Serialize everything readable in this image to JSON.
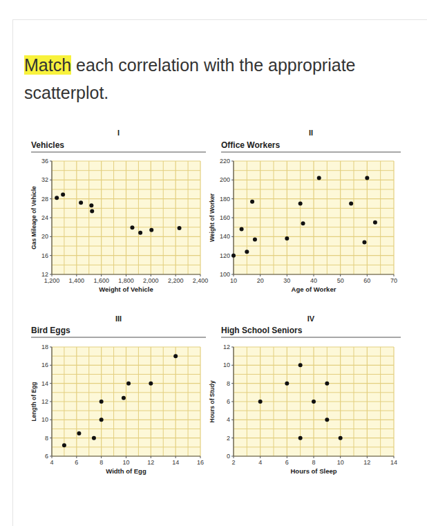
{
  "question": {
    "highlight": "Match",
    "text": "each correlation with the appropriate scatterplot."
  },
  "chart_data": [
    {
      "type": "scatter",
      "annotations": [
        "I"
      ],
      "title": "Vehicles",
      "x_label": "Weight of Vehicle",
      "y_label": "Gas Mileage of Vehicle",
      "x": [
        1240,
        1290,
        1435,
        1520,
        1525,
        1850,
        1915,
        2005,
        2230
      ],
      "values": [
        28.2,
        28.9,
        27.2,
        26.6,
        25.4,
        21.9,
        20.8,
        21.4,
        21.8
      ],
      "xlim": [
        1200,
        2400
      ],
      "xticks": [
        {
          "value": 1200,
          "label": "1,200"
        },
        {
          "value": 1400,
          "label": "1,400"
        },
        {
          "value": 1600,
          "label": "1,600"
        },
        {
          "value": 1800,
          "label": "1,800"
        },
        {
          "value": 2000,
          "label": "2,000"
        },
        {
          "value": 2200,
          "label": "2,200"
        },
        {
          "value": 2400,
          "label": "2,400"
        }
      ],
      "ylim": [
        12,
        36
      ],
      "yticks": [
        12,
        16,
        20,
        24,
        28,
        32,
        36
      ],
      "grid": true,
      "color": "#111111",
      "marker": "circle"
    },
    {
      "type": "scatter",
      "annotations": [
        "II"
      ],
      "title": "Office Workers",
      "x_label": "Age of Worker",
      "y_label": "Weight of Worker",
      "x": [
        10,
        13,
        15,
        17,
        18,
        30,
        35,
        36,
        42,
        54,
        59,
        60,
        63
      ],
      "values": [
        120,
        148,
        124,
        177,
        137,
        138,
        175,
        154,
        202,
        175,
        134,
        202,
        155
      ],
      "xlim": [
        10,
        70
      ],
      "xticks": [
        10,
        20,
        30,
        40,
        50,
        60,
        70
      ],
      "ylim": [
        100,
        220
      ],
      "yticks": [
        100,
        120,
        140,
        160,
        180,
        200,
        220
      ],
      "grid": true,
      "color": "#111111",
      "marker": "circle"
    },
    {
      "type": "scatter",
      "annotations": [
        "III"
      ],
      "title": "Bird Eggs",
      "x_label": "Width of Egg",
      "y_label": "Length of Egg",
      "x": [
        5,
        6.2,
        7.4,
        8,
        8,
        9.8,
        10.2,
        12,
        14
      ],
      "values": [
        7.2,
        8.5,
        8,
        10,
        12,
        12.4,
        14,
        14,
        17
      ],
      "xlim": [
        4,
        16
      ],
      "xticks": [
        4,
        6,
        8,
        10,
        12,
        14,
        16
      ],
      "ylim": [
        6,
        18
      ],
      "yticks": [
        6,
        8,
        10,
        12,
        14,
        16,
        18
      ],
      "grid": true,
      "color": "#111111",
      "marker": "circle"
    },
    {
      "type": "scatter",
      "annotations": [
        "IV"
      ],
      "title": "High School Seniors",
      "x_label": "Hours of Sleep",
      "y_label": "Hours of Study",
      "x": [
        4,
        6,
        7,
        7,
        8,
        9,
        9,
        10
      ],
      "values": [
        6,
        8,
        10,
        2,
        6,
        8,
        4,
        2
      ],
      "xlim": [
        2,
        14
      ],
      "xticks": [
        2,
        4,
        6,
        8,
        10,
        12,
        14
      ],
      "ylim": [
        0,
        12
      ],
      "yticks": [
        0,
        2,
        4,
        6,
        8,
        10,
        12
      ],
      "grid": true,
      "color": "#111111",
      "marker": "circle"
    }
  ]
}
